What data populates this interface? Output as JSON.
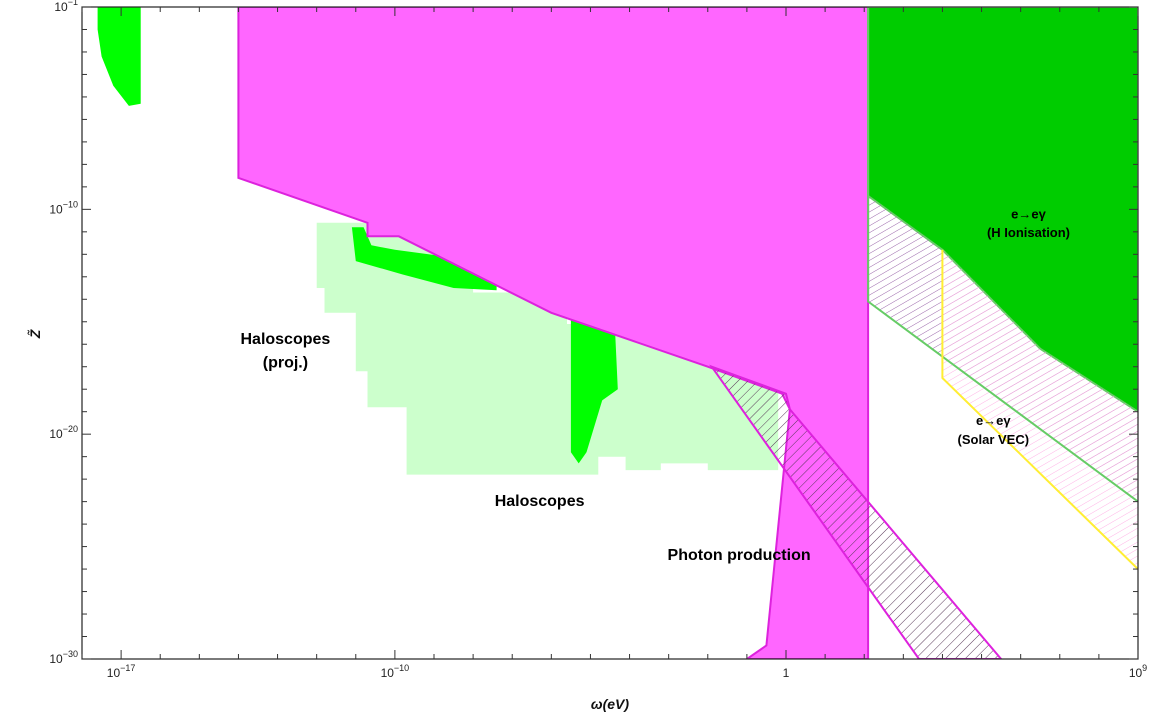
{
  "colors": {
    "magenta_fill": "#ff66ff",
    "magenta_edge": "#dd22dd",
    "bright_green": "#00ff00",
    "dark_green": "#00cc00",
    "green_edge": "#66cc66",
    "light_green": "#ccffcc",
    "yellow": "#ffee33",
    "hatch": "#555555"
  },
  "chart_data": {
    "type": "area",
    "xlabel": "ω(eV)",
    "ylabel": "Z̃",
    "xscale": "log10",
    "yscale": "log10",
    "xlim_log10": [
      -18,
      9
    ],
    "ylim_log10": [
      -30,
      -1
    ],
    "x_ticks": [
      {
        "log10": -17,
        "label": "10",
        "exp": "−17"
      },
      {
        "log10": -10,
        "label": "10",
        "exp": "−10"
      },
      {
        "log10": 0,
        "label": "1",
        "exp": ""
      },
      {
        "log10": 9,
        "label": "10",
        "exp": "9"
      }
    ],
    "y_ticks": [
      {
        "log10": -1,
        "label": "10",
        "exp": "−1"
      },
      {
        "log10": -10,
        "label": "10",
        "exp": "−10"
      },
      {
        "log10": -20,
        "label": "10",
        "exp": "−20"
      },
      {
        "log10": -30,
        "label": "10",
        "exp": "−30"
      }
    ],
    "regions": [
      {
        "name": "Haloscopes (proj.)",
        "style": "light_green",
        "points": [
          [
            -12.0,
            -10.6
          ],
          [
            -8.0,
            -10.6
          ],
          [
            -8.0,
            -13.7
          ],
          [
            -5.6,
            -13.7
          ],
          [
            -5.6,
            -15.1
          ],
          [
            -1.3,
            -15.1
          ],
          [
            -1.3,
            -16.2
          ],
          [
            -0.2,
            -16.2
          ],
          [
            -0.2,
            -21.6
          ],
          [
            -2.0,
            -21.6
          ],
          [
            -2.0,
            -21.3
          ],
          [
            -3.2,
            -21.3
          ],
          [
            -3.2,
            -21.6
          ],
          [
            -4.1,
            -21.6
          ],
          [
            -4.1,
            -21.0
          ],
          [
            -4.8,
            -21.0
          ],
          [
            -4.8,
            -21.8
          ],
          [
            -9.7,
            -21.8
          ],
          [
            -9.7,
            -18.8
          ],
          [
            -10.7,
            -18.8
          ],
          [
            -10.7,
            -17.2
          ],
          [
            -11.0,
            -17.2
          ],
          [
            -11.0,
            -14.6
          ],
          [
            -11.8,
            -14.6
          ],
          [
            -11.8,
            -13.5
          ],
          [
            -12.0,
            -13.5
          ]
        ]
      },
      {
        "name": "Haloscopes",
        "style": "bright_green",
        "points": [
          [
            -11.1,
            -10.8
          ],
          [
            -10.8,
            -10.8
          ],
          [
            -10.6,
            -11.6
          ],
          [
            -10.0,
            -11.8
          ],
          [
            -7.4,
            -12.4
          ],
          [
            -7.4,
            -13.6
          ],
          [
            -8.5,
            -13.5
          ],
          [
            -9.8,
            -12.9
          ],
          [
            -11.0,
            -12.3
          ]
        ]
      },
      {
        "name": "Haloscopes",
        "style": "bright_green",
        "points": [
          [
            -5.5,
            -14.3
          ],
          [
            -4.4,
            -14.3
          ],
          [
            -4.3,
            -18.0
          ],
          [
            -4.7,
            -18.5
          ],
          [
            -5.1,
            -20.8
          ],
          [
            -5.3,
            -21.3
          ],
          [
            -5.5,
            -20.8
          ]
        ]
      },
      {
        "name": "",
        "style": "bright_green",
        "points": [
          [
            -17.6,
            -1.0
          ],
          [
            -16.5,
            -1.0
          ],
          [
            -16.5,
            -5.3
          ],
          [
            -16.8,
            -5.4
          ],
          [
            -17.2,
            -4.5
          ],
          [
            -17.5,
            -3.2
          ],
          [
            -17.6,
            -2.0
          ]
        ]
      },
      {
        "name": "",
        "style": "magenta",
        "points": [
          [
            -14.0,
            -1.0
          ],
          [
            2.1,
            -1.0
          ],
          [
            2.1,
            -30.0
          ],
          [
            -1.0,
            -30.0
          ],
          [
            -0.5,
            -29.4
          ],
          [
            0.1,
            -18.9
          ],
          [
            -0.1,
            -18.2
          ],
          [
            -2.0,
            -17.0
          ],
          [
            -6.0,
            -14.6
          ],
          [
            -9.9,
            -11.2
          ],
          [
            -10.7,
            -11.2
          ],
          [
            -10.7,
            -10.6
          ],
          [
            -14.0,
            -8.6
          ]
        ]
      },
      {
        "name": "Photon production",
        "style": "magenta_hatched",
        "points": [
          [
            -1.9,
            -17.0
          ],
          [
            0.0,
            -18.2
          ],
          [
            0.1,
            -18.9
          ],
          [
            5.5,
            -30.0
          ],
          [
            3.4,
            -30.0
          ]
        ]
      },
      {
        "name": "e→eγ (H Ionisation)",
        "style": "dark_green",
        "points": [
          [
            2.1,
            -1.0
          ],
          [
            9.0,
            -1.0
          ],
          [
            9.0,
            -19.0
          ],
          [
            6.5,
            -16.2
          ],
          [
            4.0,
            -11.8
          ],
          [
            2.1,
            -9.4
          ]
        ]
      },
      {
        "name": "",
        "style": "green_hatch",
        "points": [
          [
            2.1,
            -9.4
          ],
          [
            4.0,
            -11.8
          ],
          [
            6.5,
            -16.2
          ],
          [
            9.0,
            -19.0
          ],
          [
            9.0,
            -23.0
          ],
          [
            2.1,
            -14.1
          ]
        ]
      },
      {
        "name": "e→eγ (Solar VEC)",
        "style": "pink_hatch",
        "points": [
          [
            4.0,
            -11.8
          ],
          [
            6.5,
            -16.2
          ],
          [
            9.0,
            -19.0
          ],
          [
            9.0,
            -26.0
          ],
          [
            4.0,
            -17.5
          ]
        ]
      }
    ],
    "lines": [
      {
        "name": "",
        "style": "green_edge",
        "points": [
          [
            2.1,
            -1.0
          ],
          [
            2.1,
            -14.1
          ],
          [
            9.0,
            -23.0
          ]
        ]
      },
      {
        "name": "",
        "style": "yellow",
        "points": [
          [
            4.0,
            -11.8
          ],
          [
            4.0,
            -17.5
          ],
          [
            9.0,
            -26.0
          ]
        ]
      }
    ],
    "annotations": [
      {
        "lines": [
          "Haloscopes",
          "(proj.)"
        ],
        "at": [
          -12.8,
          -16.0
        ],
        "size": 16
      },
      {
        "lines": [
          "Haloscopes"
        ],
        "at": [
          -6.3,
          -23.2
        ],
        "size": 16
      },
      {
        "lines": [
          "Photon production"
        ],
        "at": [
          -1.2,
          -25.6
        ],
        "size": 16
      },
      {
        "lines": [
          "e→eγ",
          "(H Ionisation)"
        ],
        "at": [
          6.2,
          -10.4
        ],
        "size": 13
      },
      {
        "lines": [
          "e→eγ",
          "(Solar VEC)"
        ],
        "at": [
          5.3,
          -19.6
        ],
        "size": 13
      }
    ]
  }
}
